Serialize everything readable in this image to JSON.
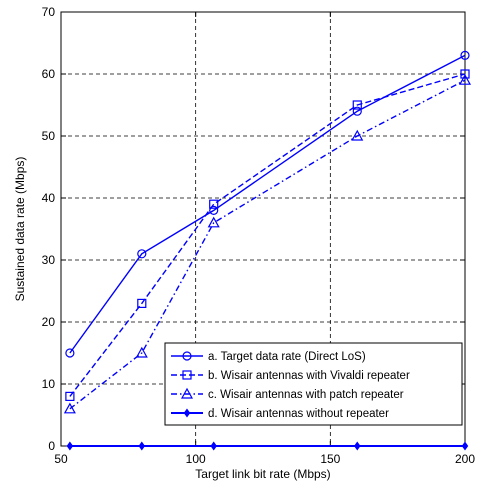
{
  "chart_data": {
    "type": "line",
    "xlabel": "Target link bit rate (Mbps)",
    "ylabel": "Sustained data rate (Mbps)",
    "xlim": [
      50,
      200
    ],
    "ylim": [
      0,
      70
    ],
    "xticks": [
      50,
      100,
      150,
      200
    ],
    "yticks": [
      0,
      10,
      20,
      30,
      40,
      50,
      60,
      70
    ],
    "grid": true,
    "legend_position": "bottom-right",
    "series": [
      {
        "name": "a. Target data rate (Direct LoS)",
        "x": [
          53.3,
          80,
          106.7,
          160,
          200
        ],
        "values": [
          15,
          31,
          38,
          54,
          63
        ],
        "color": "#0000ff",
        "dash": "solid",
        "marker": "circle"
      },
      {
        "name": "b. Wisair antennas with Vivaldi repeater",
        "x": [
          53.3,
          80,
          106.7,
          160,
          200
        ],
        "values": [
          8,
          23,
          39,
          55,
          60
        ],
        "color": "#0000ff",
        "dash": "dashed",
        "marker": "square"
      },
      {
        "name": "c. Wisair antennas with patch repeater",
        "x": [
          53.3,
          80,
          106.7,
          160,
          200
        ],
        "values": [
          6,
          15,
          36,
          50,
          59
        ],
        "color": "#0000ff",
        "dash": "dashdot",
        "marker": "triangle"
      },
      {
        "name": "d. Wisair antennas without repeater",
        "x": [
          53.3,
          80,
          106.7,
          160,
          200
        ],
        "values": [
          0,
          0,
          0,
          0,
          0
        ],
        "color": "#0000ff",
        "dash": "solid",
        "marker": "diamond"
      }
    ]
  }
}
